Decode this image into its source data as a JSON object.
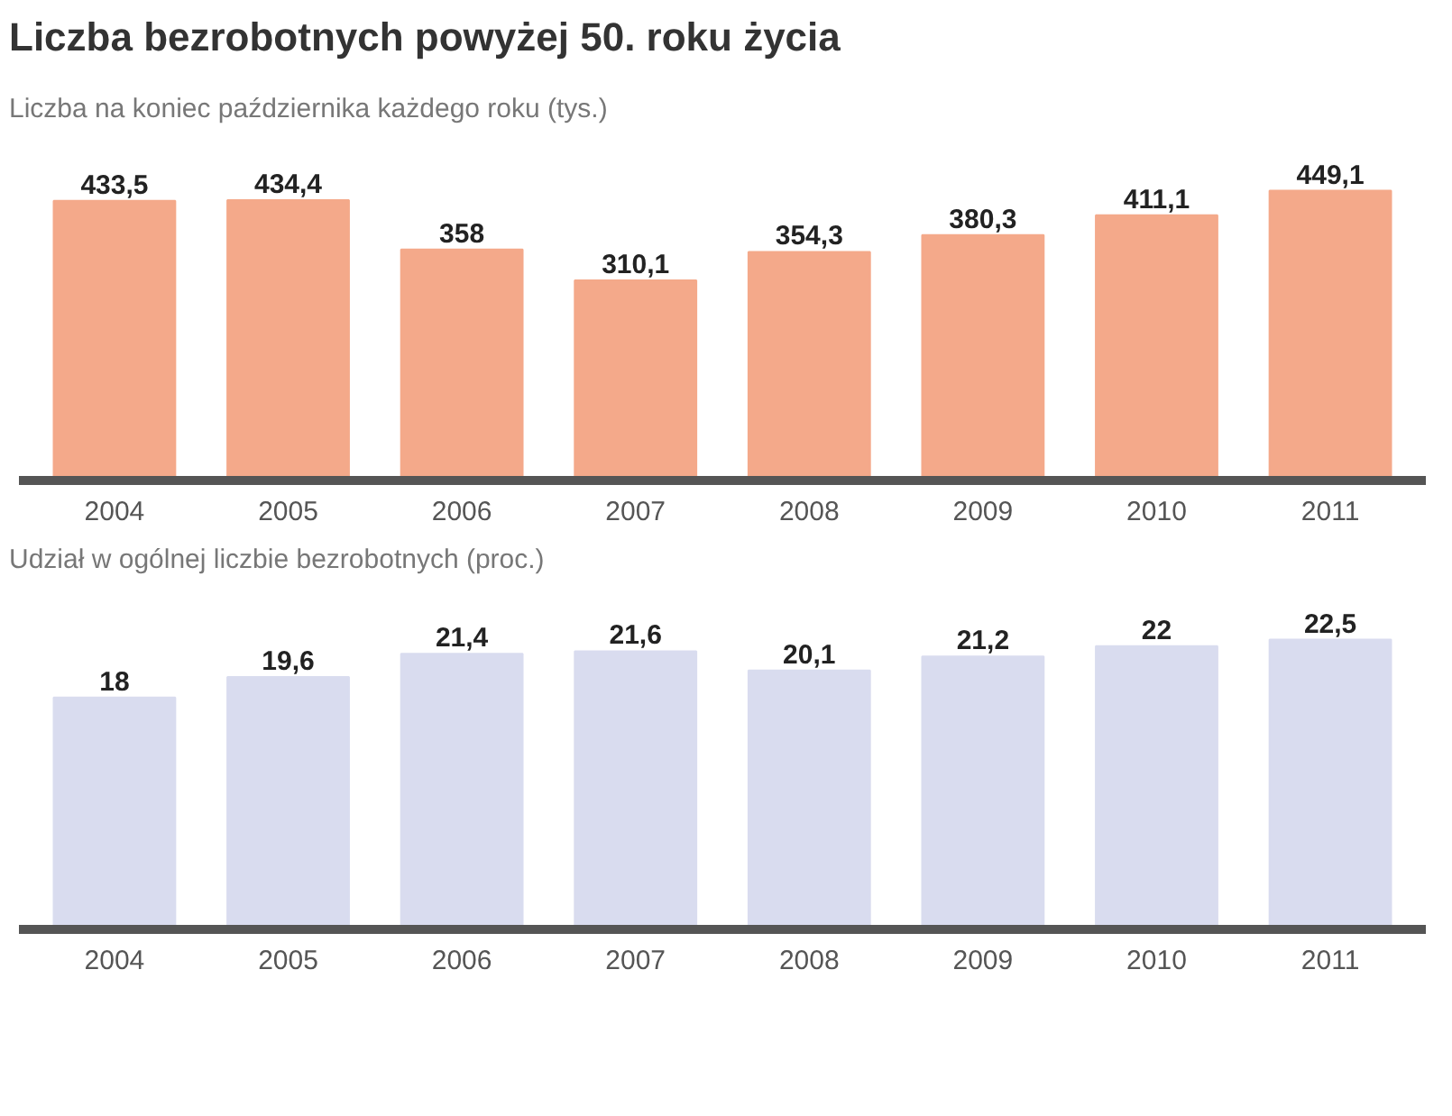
{
  "chart_data": [
    {
      "type": "bar",
      "title": "Liczba bezrobotnych powyżej 50. roku życia",
      "subtitle": "Liczba na koniec października każdego roku (tys.)",
      "categories": [
        "2004",
        "2005",
        "2006",
        "2007",
        "2008",
        "2009",
        "2010",
        "2011"
      ],
      "values": [
        433.5,
        434.4,
        358,
        310.1,
        354.3,
        380.3,
        411.1,
        449.1
      ],
      "value_labels": [
        "433,5",
        "434,4",
        "358",
        "310,1",
        "354,3",
        "380,3",
        "411,1",
        "449,1"
      ],
      "color": "#f4a98a",
      "grid": false
    },
    {
      "type": "bar",
      "subtitle": "Udział w ogólnej liczbie bezrobotnych (proc.)",
      "categories": [
        "2004",
        "2005",
        "2006",
        "2007",
        "2008",
        "2009",
        "2010",
        "2011"
      ],
      "values": [
        18,
        19.6,
        21.4,
        21.6,
        20.1,
        21.2,
        22,
        22.5
      ],
      "value_labels": [
        "18",
        "19,6",
        "21,4",
        "21,6",
        "20,1",
        "21,2",
        "22",
        "22,5"
      ],
      "color": "#d9dcef",
      "grid": false
    }
  ]
}
